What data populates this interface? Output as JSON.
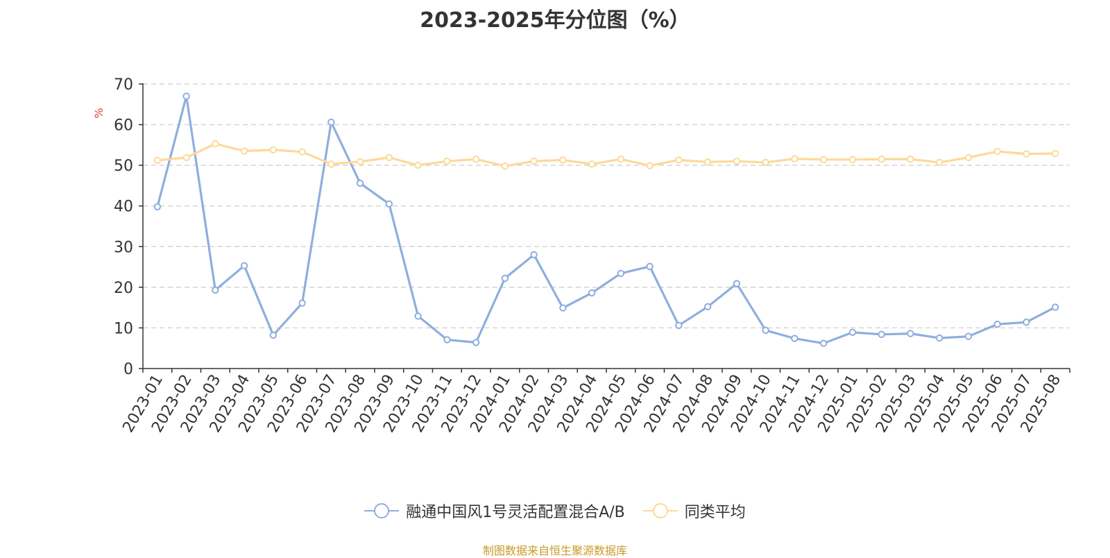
{
  "chart_data": {
    "type": "line",
    "title": "2023-2025年分位图（%）",
    "ylabel": "%",
    "xlabel": "",
    "ylim": [
      0,
      70
    ],
    "yticks": [
      0,
      10,
      20,
      30,
      40,
      50,
      60,
      70
    ],
    "grid": true,
    "legend_position": "bottom",
    "categories": [
      "2023-01",
      "2023-02",
      "2023-03",
      "2023-04",
      "2023-05",
      "2023-06",
      "2023-07",
      "2023-08",
      "2023-09",
      "2023-10",
      "2023-11",
      "2023-12",
      "2024-01",
      "2024-02",
      "2024-03",
      "2024-04",
      "2024-05",
      "2024-06",
      "2024-07",
      "2024-08",
      "2024-09",
      "2024-10",
      "2024-11",
      "2024-12",
      "2025-01",
      "2025-02",
      "2025-03",
      "2025-04",
      "2025-05",
      "2025-06",
      "2025-07",
      "2025-08"
    ],
    "series": [
      {
        "name": "融通中国风1号灵活配置混合A/B",
        "color": "#8eaede",
        "values": [
          39.8,
          67,
          19.3,
          25.3,
          8.2,
          16.1,
          60.6,
          45.6,
          40.5,
          12.9,
          7.1,
          6.4,
          22.2,
          28.0,
          14.9,
          18.6,
          23.4,
          25.1,
          10.6,
          15.2,
          20.9,
          9.4,
          7.4,
          6.2,
          8.9,
          8.4,
          8.6,
          7.5,
          7.9,
          10.9,
          11.4,
          15.1
        ]
      },
      {
        "name": "同类平均",
        "color": "#fdd999",
        "values": [
          51.2,
          51.9,
          55.3,
          53.5,
          53.8,
          53.3,
          50.3,
          50.9,
          51.9,
          50.0,
          51.0,
          51.5,
          49.8,
          51.0,
          51.3,
          50.3,
          51.5,
          49.9,
          51.3,
          50.8,
          51.0,
          50.7,
          51.6,
          51.4,
          51.4,
          51.5,
          51.5,
          50.7,
          51.9,
          53.4,
          52.8,
          52.9
        ]
      }
    ]
  },
  "footer": {
    "source": "制图数据来自恒生聚源数据库"
  }
}
